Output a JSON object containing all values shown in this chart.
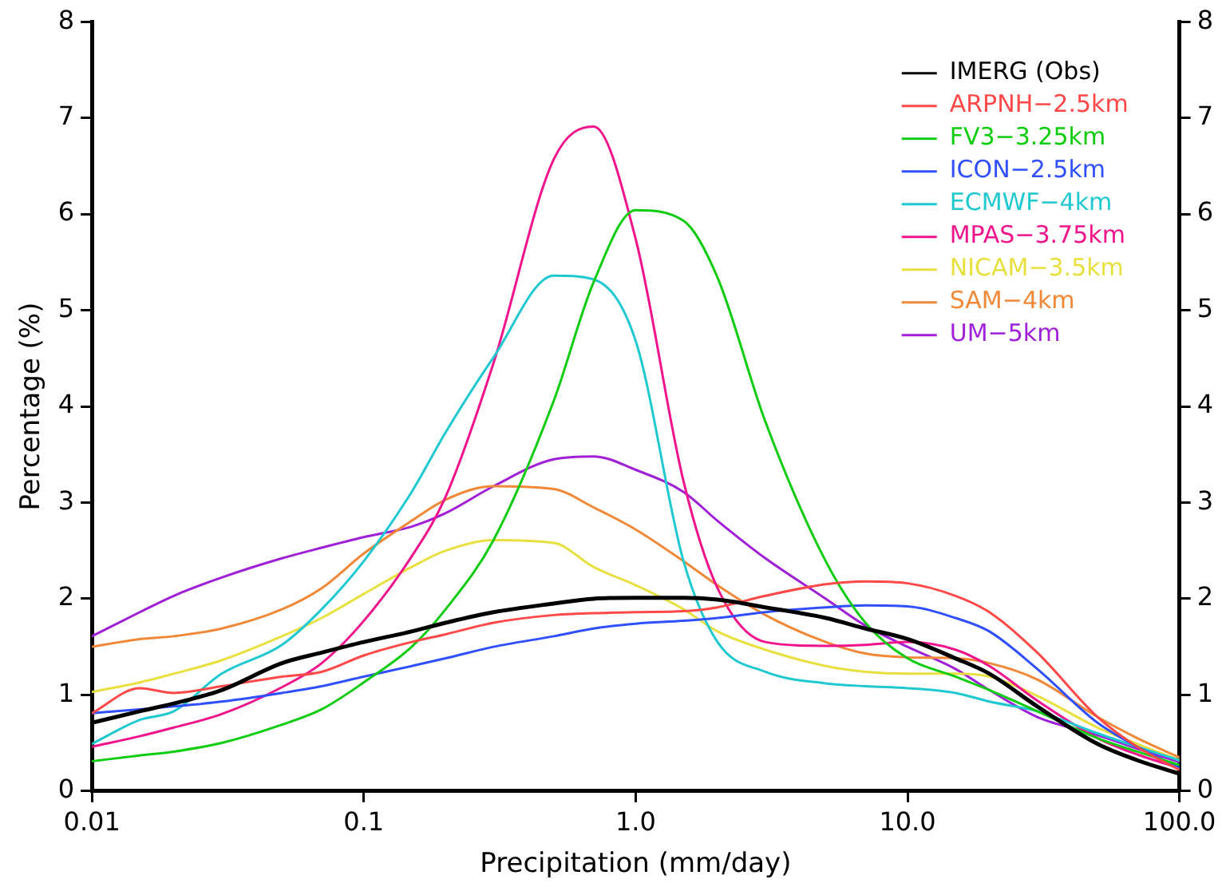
{
  "chart_data": {
    "type": "line",
    "xlabel": "Precipitation (mm/day)",
    "ylabel": "Percentage (%)",
    "log": "x",
    "xlim": [
      0.01,
      100
    ],
    "xticks": [
      {
        "value": 0.01,
        "label": "0.01"
      },
      {
        "value": 0.1,
        "label": "0.1"
      },
      {
        "value": 1,
        "label": "1.0"
      },
      {
        "value": 10,
        "label": "10.0"
      },
      {
        "value": 100,
        "label": "100.0"
      }
    ],
    "ylim": [
      0,
      8
    ],
    "yticks": [
      0,
      1,
      2,
      3,
      4,
      5,
      6,
      7,
      8
    ],
    "y2lim": [
      0,
      8
    ],
    "y2ticks": [
      0,
      1,
      2,
      3,
      4,
      5,
      6,
      7,
      8
    ],
    "grid": false,
    "legend": "top right",
    "marker": "none",
    "line_style": "solid",
    "x": [
      0.01,
      0.015,
      0.02,
      0.03,
      0.05,
      0.07,
      0.1,
      0.15,
      0.2,
      0.3,
      0.5,
      0.7,
      1,
      1.5,
      2,
      3,
      5,
      7,
      10,
      15,
      20,
      30,
      50,
      70,
      100
    ],
    "series": [
      {
        "name": "IMERG (Obs)",
        "color": "#000000",
        "values": [
          0.71,
          0.83,
          0.91,
          1.05,
          1.33,
          1.44,
          1.55,
          1.66,
          1.75,
          1.86,
          1.95,
          2.0,
          2.01,
          2.01,
          1.99,
          1.91,
          1.8,
          1.69,
          1.58,
          1.38,
          1.22,
          0.88,
          0.49,
          0.32,
          0.18
        ]
      },
      {
        "name": "ARPNH−2.5km",
        "color": "#ff4848",
        "values": [
          0.81,
          1.07,
          1.02,
          1.09,
          1.19,
          1.24,
          1.41,
          1.55,
          1.63,
          1.75,
          1.83,
          1.85,
          1.86,
          1.87,
          1.91,
          2.03,
          2.15,
          2.18,
          2.16,
          2.03,
          1.86,
          1.44,
          0.77,
          0.46,
          0.22
        ]
      },
      {
        "name": "FV3−3.25km",
        "color": "#10cc10",
        "values": [
          0.31,
          0.37,
          0.41,
          0.5,
          0.69,
          0.85,
          1.13,
          1.5,
          1.89,
          2.61,
          4.06,
          5.29,
          6.04,
          5.93,
          5.34,
          3.84,
          2.39,
          1.75,
          1.38,
          1.19,
          1.05,
          0.83,
          0.55,
          0.41,
          0.27
        ]
      },
      {
        "name": "ICON−2.5km",
        "color": "#3050ff",
        "values": [
          0.81,
          0.85,
          0.88,
          0.93,
          1.02,
          1.09,
          1.19,
          1.3,
          1.38,
          1.5,
          1.61,
          1.69,
          1.74,
          1.77,
          1.8,
          1.86,
          1.91,
          1.93,
          1.92,
          1.8,
          1.66,
          1.27,
          0.71,
          0.46,
          0.24
        ]
      },
      {
        "name": "ECMWF−4km",
        "color": "#20c8d0",
        "values": [
          0.49,
          0.74,
          0.83,
          1.22,
          1.52,
          1.89,
          2.39,
          3.11,
          3.73,
          4.51,
          5.36,
          5.32,
          4.68,
          2.39,
          1.55,
          1.24,
          1.12,
          1.09,
          1.07,
          1.02,
          0.93,
          0.83,
          0.6,
          0.46,
          0.32
        ]
      },
      {
        "name": "MPAS−3.75km",
        "color": "#f0148c",
        "values": [
          0.46,
          0.57,
          0.66,
          0.8,
          1.08,
          1.33,
          1.77,
          2.44,
          3.06,
          4.45,
          6.57,
          6.91,
          5.74,
          3.22,
          2.11,
          1.55,
          1.51,
          1.52,
          1.55,
          1.47,
          1.3,
          0.94,
          0.55,
          0.38,
          0.24
        ]
      },
      {
        "name": "NICAM−3.5km",
        "color": "#e8e040",
        "values": [
          1.03,
          1.13,
          1.22,
          1.36,
          1.61,
          1.8,
          2.05,
          2.33,
          2.5,
          2.61,
          2.58,
          2.33,
          2.14,
          1.89,
          1.66,
          1.47,
          1.3,
          1.24,
          1.22,
          1.22,
          1.19,
          0.99,
          0.66,
          0.49,
          0.32
        ]
      },
      {
        "name": "SAM−4km",
        "color": "#f08838",
        "values": [
          1.5,
          1.58,
          1.61,
          1.69,
          1.89,
          2.11,
          2.47,
          2.81,
          3.03,
          3.17,
          3.14,
          2.95,
          2.72,
          2.39,
          2.14,
          1.83,
          1.55,
          1.43,
          1.39,
          1.38,
          1.33,
          1.16,
          0.77,
          0.55,
          0.35
        ]
      },
      {
        "name": "UM−5km",
        "color": "#a020d8",
        "values": [
          1.61,
          1.86,
          2.03,
          2.22,
          2.42,
          2.53,
          2.64,
          2.75,
          2.89,
          3.17,
          3.45,
          3.48,
          3.34,
          3.11,
          2.81,
          2.42,
          2.0,
          1.72,
          1.5,
          1.27,
          1.05,
          0.77,
          0.58,
          0.44,
          0.3
        ]
      }
    ]
  }
}
